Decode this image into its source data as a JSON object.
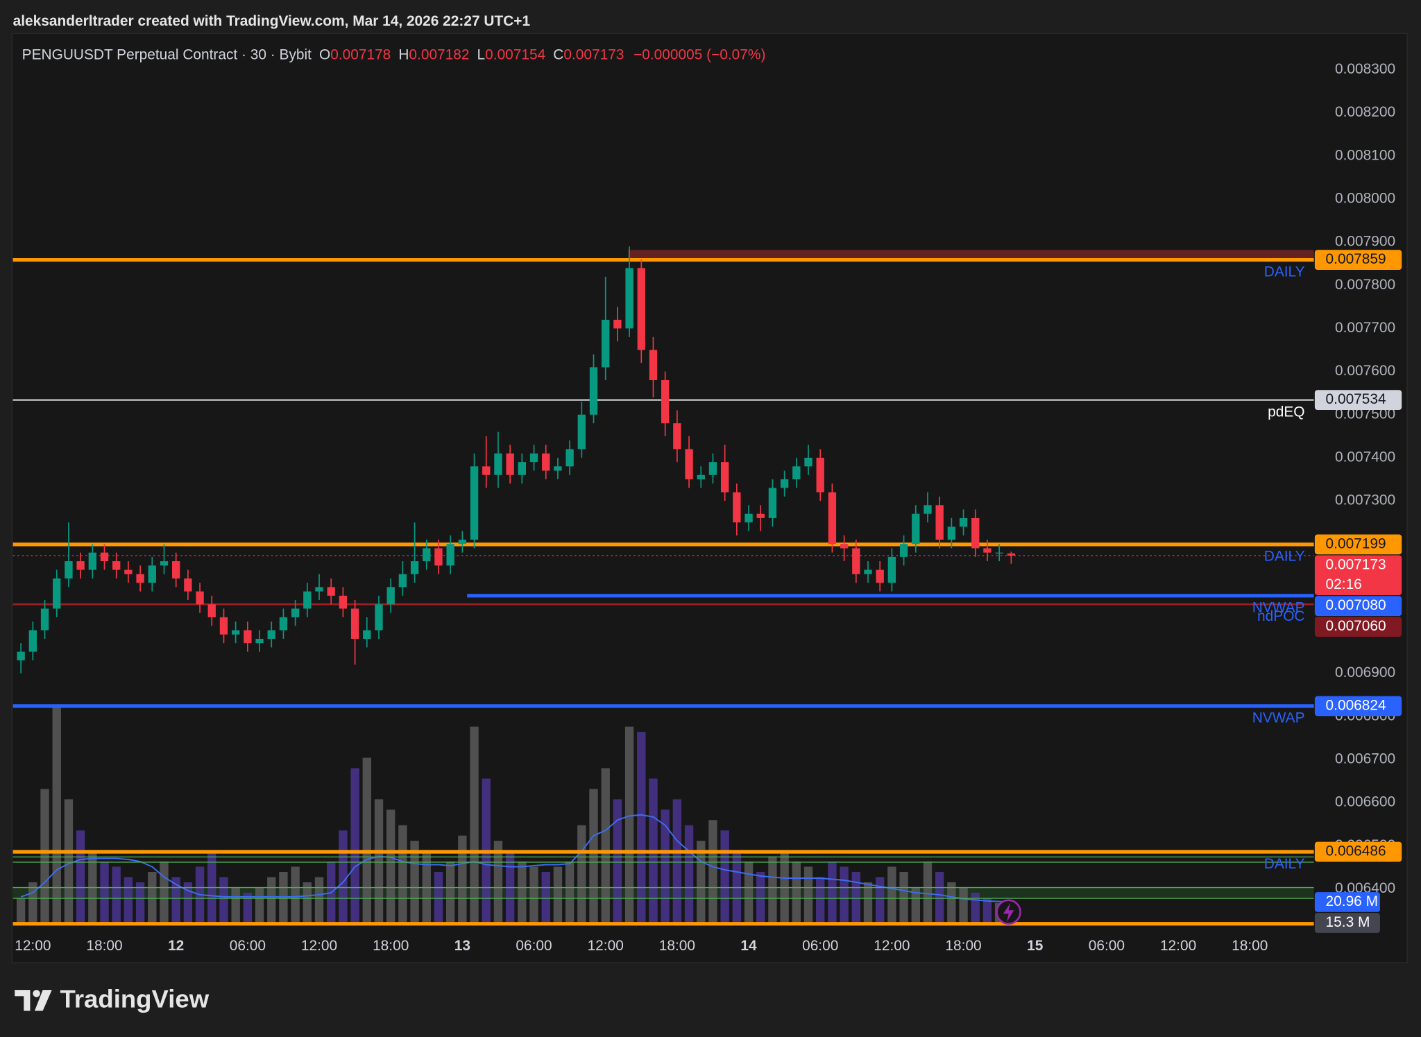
{
  "header": {
    "text": "aleksanderltrader created with TradingView.com, Mar 14, 2026 22:27 UTC+1"
  },
  "footer": {
    "logo": "TradingView"
  },
  "chart_data": {
    "type": "candlestick",
    "symbol": "PENGUUSDT Perpetual Contract · 30 · Bybit",
    "legend_labels": [
      "O",
      "H",
      "L",
      "C"
    ],
    "change": "−0.000005 (−0.07%)",
    "up_color": "#089981",
    "down_color": "#f23645",
    "volume_up_color": "#5a5a5a",
    "volume_down_color": "#4a3590",
    "volume_ma_color": "#3d6df0",
    "xlim": [
      10.33,
      119.37
    ],
    "xticks": [
      {
        "value": 12,
        "label": "12:00"
      },
      {
        "value": 18,
        "label": "18:00"
      },
      {
        "value": 24,
        "label": "12"
      },
      {
        "value": 30,
        "label": "06:00"
      },
      {
        "value": 36,
        "label": "12:00"
      },
      {
        "value": 42,
        "label": "18:00"
      },
      {
        "value": 48,
        "label": "13"
      },
      {
        "value": 54,
        "label": "06:00"
      },
      {
        "value": 60,
        "label": "12:00"
      },
      {
        "value": 66,
        "label": "18:00"
      },
      {
        "value": 72,
        "label": "14"
      },
      {
        "value": 78,
        "label": "06:00"
      },
      {
        "value": 84,
        "label": "12:00"
      },
      {
        "value": 90,
        "label": "18:00"
      },
      {
        "value": 96,
        "label": "15"
      },
      {
        "value": 102,
        "label": "06:00"
      },
      {
        "value": 108,
        "label": "12:00"
      },
      {
        "value": 114,
        "label": "18:00"
      }
    ],
    "ylim": [
      0.006298,
      0.008384
    ],
    "yticks": [
      {
        "value": 0.0083,
        "label": "0.008300"
      },
      {
        "value": 0.0082,
        "label": "0.008200"
      },
      {
        "value": 0.0081,
        "label": "0.008100"
      },
      {
        "value": 0.008,
        "label": "0.008000"
      },
      {
        "value": 0.0079,
        "label": "0.007900"
      },
      {
        "value": 0.0078,
        "label": "0.007800"
      },
      {
        "value": 0.0077,
        "label": "0.007700"
      },
      {
        "value": 0.0076,
        "label": "0.007600"
      },
      {
        "value": 0.0075,
        "label": "0.007500"
      },
      {
        "value": 0.0074,
        "label": "0.007400"
      },
      {
        "value": 0.0073,
        "label": "0.007300"
      },
      {
        "value": 0.0072,
        "label": "0.007200"
      },
      {
        "value": 0.0071,
        "label": "0.007100"
      },
      {
        "value": 0.007,
        "label": "0.007000"
      },
      {
        "value": 0.0069,
        "label": "0.006900"
      },
      {
        "value": 0.0068,
        "label": "0.006800"
      },
      {
        "value": 0.0067,
        "label": "0.006700"
      },
      {
        "value": 0.0066,
        "label": "0.006600"
      },
      {
        "value": 0.0065,
        "label": "0.006500"
      },
      {
        "value": 0.0064,
        "label": "0.006400"
      }
    ],
    "volume_lim": [
      0,
      220
    ],
    "x": [
      11,
      12,
      13,
      14,
      15,
      16,
      17,
      18,
      19,
      20,
      21,
      22,
      23,
      24,
      25,
      26,
      27,
      28,
      29,
      30,
      31,
      32,
      33,
      34,
      35,
      36,
      37,
      38,
      39,
      40,
      41,
      42,
      43,
      44,
      45,
      46,
      47,
      48,
      49,
      50,
      51,
      52,
      53,
      54,
      55,
      56,
      57,
      58,
      59,
      60,
      61,
      62,
      63,
      64,
      65,
      66,
      67,
      68,
      69,
      70,
      71,
      72,
      73,
      74,
      75,
      76,
      77,
      78,
      79,
      80,
      81,
      82,
      83,
      84,
      85,
      86,
      87,
      88,
      89,
      90,
      91,
      92,
      93,
      94
    ],
    "open": [
      0.00693,
      0.00695,
      0.007,
      0.00705,
      0.00712,
      0.00716,
      0.00714,
      0.00718,
      0.00716,
      0.00714,
      0.00713,
      0.00711,
      0.00715,
      0.00716,
      0.00712,
      0.00709,
      0.00706,
      0.00703,
      0.00699,
      0.007,
      0.00697,
      0.00698,
      0.007,
      0.00703,
      0.00705,
      0.00709,
      0.0071,
      0.00708,
      0.00705,
      0.00698,
      0.007,
      0.00706,
      0.0071,
      0.00713,
      0.00716,
      0.00719,
      0.00715,
      0.0072,
      0.00721,
      0.00738,
      0.00736,
      0.00741,
      0.00736,
      0.00739,
      0.00741,
      0.00737,
      0.00738,
      0.00742,
      0.0075,
      0.00761,
      0.00772,
      0.0077,
      0.00784,
      0.00765,
      0.00758,
      0.00748,
      0.00742,
      0.00735,
      0.00736,
      0.00739,
      0.00732,
      0.00725,
      0.00727,
      0.00726,
      0.00733,
      0.00735,
      0.00738,
      0.0074,
      0.00732,
      0.0072,
      0.00719,
      0.00713,
      0.00714,
      0.00711,
      0.00717,
      0.0072,
      0.00727,
      0.00729,
      0.00721,
      0.00724,
      0.00726,
      0.00719,
      0.00718,
      0.007178
    ],
    "high": [
      0.00697,
      0.00702,
      0.00707,
      0.00714,
      0.00725,
      0.00718,
      0.0072,
      0.0072,
      0.00718,
      0.00716,
      0.00715,
      0.00717,
      0.0072,
      0.00718,
      0.00714,
      0.00711,
      0.00708,
      0.00705,
      0.00702,
      0.00702,
      0.007,
      0.00702,
      0.00705,
      0.00707,
      0.00711,
      0.00713,
      0.00712,
      0.0071,
      0.00707,
      0.00703,
      0.00708,
      0.00712,
      0.00716,
      0.00725,
      0.00721,
      0.00721,
      0.00722,
      0.00723,
      0.00741,
      0.00745,
      0.00746,
      0.00743,
      0.00741,
      0.00743,
      0.00743,
      0.0074,
      0.00744,
      0.00753,
      0.00764,
      0.00782,
      0.00775,
      0.00789,
      0.00786,
      0.00768,
      0.0076,
      0.00751,
      0.00745,
      0.00738,
      0.00741,
      0.00743,
      0.00734,
      0.00729,
      0.00729,
      0.00735,
      0.00737,
      0.0074,
      0.00743,
      0.00742,
      0.00734,
      0.00722,
      0.00721,
      0.00716,
      0.00716,
      0.00719,
      0.00722,
      0.00729,
      0.00732,
      0.00731,
      0.00726,
      0.00728,
      0.00728,
      0.00721,
      0.0072,
      0.007182
    ],
    "low": [
      0.0069,
      0.00693,
      0.00698,
      0.00703,
      0.0071,
      0.00712,
      0.00712,
      0.00714,
      0.00712,
      0.00711,
      0.00709,
      0.00709,
      0.00713,
      0.0071,
      0.00707,
      0.00704,
      0.00701,
      0.00697,
      0.00697,
      0.00695,
      0.00695,
      0.00696,
      0.00698,
      0.00701,
      0.00703,
      0.00707,
      0.00706,
      0.00703,
      0.00692,
      0.00696,
      0.00698,
      0.00704,
      0.00708,
      0.00711,
      0.00714,
      0.00713,
      0.00713,
      0.00718,
      0.00719,
      0.00733,
      0.00733,
      0.00734,
      0.00734,
      0.00737,
      0.00735,
      0.00735,
      0.00736,
      0.0074,
      0.00748,
      0.00758,
      0.00767,
      0.00768,
      0.00762,
      0.00754,
      0.00745,
      0.00739,
      0.00733,
      0.00733,
      0.00734,
      0.0073,
      0.00722,
      0.00723,
      0.00723,
      0.00724,
      0.00731,
      0.00733,
      0.00736,
      0.0073,
      0.00718,
      0.00716,
      0.00711,
      0.00711,
      0.00709,
      0.00709,
      0.00715,
      0.00718,
      0.00725,
      0.00719,
      0.00719,
      0.00722,
      0.00717,
      0.00716,
      0.00716,
      0.007154
    ],
    "close": [
      0.00695,
      0.007,
      0.00705,
      0.00712,
      0.00716,
      0.00714,
      0.00718,
      0.00716,
      0.00714,
      0.00713,
      0.00711,
      0.00715,
      0.00716,
      0.00712,
      0.00709,
      0.00706,
      0.00703,
      0.00699,
      0.007,
      0.00697,
      0.00698,
      0.007,
      0.00703,
      0.00705,
      0.00709,
      0.0071,
      0.00708,
      0.00705,
      0.00698,
      0.007,
      0.00706,
      0.0071,
      0.00713,
      0.00716,
      0.00719,
      0.00715,
      0.0072,
      0.00721,
      0.00738,
      0.00736,
      0.00741,
      0.00736,
      0.00739,
      0.00741,
      0.00737,
      0.00738,
      0.00742,
      0.0075,
      0.00761,
      0.00772,
      0.0077,
      0.00784,
      0.00765,
      0.00758,
      0.00748,
      0.00742,
      0.00735,
      0.00736,
      0.00739,
      0.00732,
      0.00725,
      0.00727,
      0.00726,
      0.00733,
      0.00735,
      0.00738,
      0.0074,
      0.00732,
      0.0072,
      0.00719,
      0.00713,
      0.00714,
      0.00711,
      0.00717,
      0.0072,
      0.00727,
      0.00729,
      0.00721,
      0.00724,
      0.00726,
      0.00719,
      0.00718,
      0.00718,
      0.007173
    ],
    "volume": [
      25,
      40,
      130,
      210,
      120,
      90,
      70,
      60,
      55,
      45,
      40,
      50,
      60,
      45,
      40,
      55,
      70,
      45,
      35,
      30,
      35,
      45,
      50,
      55,
      40,
      45,
      60,
      90,
      150,
      160,
      120,
      110,
      95,
      80,
      70,
      50,
      60,
      85,
      190,
      140,
      80,
      70,
      60,
      55,
      50,
      55,
      60,
      95,
      130,
      150,
      120,
      190,
      185,
      140,
      110,
      120,
      95,
      80,
      100,
      90,
      70,
      60,
      50,
      65,
      70,
      60,
      55,
      45,
      60,
      55,
      50,
      40,
      45,
      55,
      50,
      35,
      60,
      50,
      40,
      35,
      30,
      25,
      20,
      15.3
    ],
    "volume_ma": [
      26,
      30,
      40,
      52,
      58,
      62,
      63,
      63,
      63,
      62,
      60,
      55,
      45,
      38,
      32,
      28,
      27,
      26,
      26,
      26,
      26,
      26,
      26,
      26,
      27,
      28,
      30,
      40,
      55,
      62,
      65,
      64,
      60,
      58,
      57,
      57,
      56,
      58,
      60,
      57,
      56,
      55,
      55,
      56,
      57,
      57,
      58,
      70,
      85,
      90,
      100,
      104,
      105,
      103,
      95,
      80,
      70,
      60,
      55,
      52,
      50,
      48,
      46,
      45,
      44,
      44,
      44,
      44,
      43,
      42,
      40,
      38,
      36,
      34,
      32,
      30,
      29,
      28,
      26,
      24,
      23,
      22,
      21.5,
      20.96
    ],
    "volume_tags": [
      {
        "value": 20.96,
        "label": "20.96 M",
        "color": "#2962ff"
      },
      {
        "value": 15.3,
        "label": "15.3 M",
        "color": "#434651"
      }
    ],
    "zones": [
      {
        "from": 61.9,
        "top": 0.007882,
        "bottom": 0.007859,
        "color": "#7a2424"
      },
      {
        "top": 0.006403,
        "bottom": 0.006378,
        "color": "#1f3a22"
      }
    ],
    "lines": [
      {
        "value": 0.006474,
        "color": "#4caf50",
        "width": 1
      },
      {
        "value": 0.006462,
        "color": "#4caf50",
        "width": 1
      },
      {
        "value": 0.006403,
        "color": "#4caf50",
        "width": 1
      },
      {
        "value": 0.006378,
        "color": "#4caf50",
        "width": 1
      },
      {
        "value": 0.006319,
        "color": "#ff9800",
        "width": 4
      }
    ],
    "levels": [
      {
        "value": 0.007859,
        "tag": "0.007859",
        "name": "DAILY",
        "color": "#ff9800",
        "width": 4,
        "tag_color": "#ff9800",
        "tag_text": "#131722",
        "name_color": "#2962ff"
      },
      {
        "value": 0.007534,
        "tag": "0.007534",
        "name": "pdEQ",
        "color": "#b8b8b8",
        "width": 2,
        "tag_color": "#d1d4dc",
        "tag_text": "#131722",
        "name_color": "#ffffff"
      },
      {
        "value": 0.007199,
        "tag": "0.007199",
        "name": "DAILY",
        "color": "#ff9800",
        "width": 4,
        "tag_color": "#ff9800",
        "tag_text": "#131722",
        "name_color": "#2962ff"
      },
      {
        "value": 0.007173,
        "tag": "0.007173",
        "countdown": "02:16",
        "color": "#f23645",
        "width": 1,
        "dash": true,
        "tag_color": "#f23645",
        "tag_text": "#ffffff"
      },
      {
        "value": 0.00708,
        "tag": "0.007080",
        "name": "NVWAP",
        "from": 48.4,
        "color": "#2962ff",
        "width": 4,
        "tag_color": "#2962ff",
        "tag_text": "#ffffff",
        "name_color": "#2962ff"
      },
      {
        "value": 0.00706,
        "tag": "0.007060",
        "name": "ndPOC",
        "color": "#9c1f23",
        "width": 2,
        "tag_color": "#801922",
        "tag_text": "#ffffff",
        "name_color": "#2962ff"
      },
      {
        "value": 0.006824,
        "tag": "0.006824",
        "name": "NVWAP",
        "color": "#2962ff",
        "width": 4,
        "tag_color": "#2962ff",
        "tag_text": "#ffffff",
        "name_color": "#2962ff"
      },
      {
        "value": 0.006486,
        "tag": "0.006486",
        "name": "DAILY",
        "color": "#ff9800",
        "width": 4,
        "tag_color": "#ff9800",
        "tag_text": "#131722",
        "name_color": "#2962ff"
      }
    ]
  }
}
